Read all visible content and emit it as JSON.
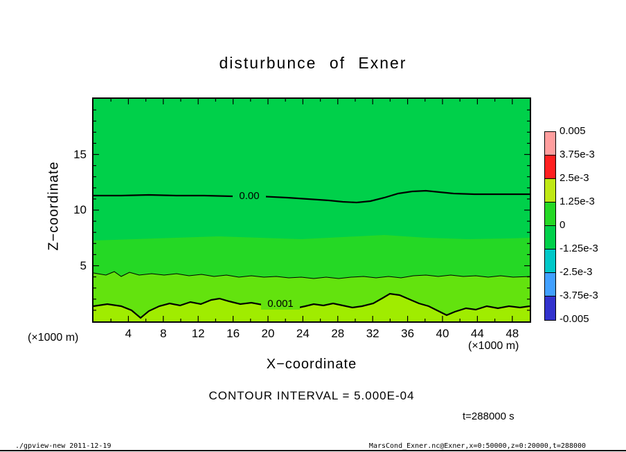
{
  "title": "disturbunce of Exner",
  "plot": {
    "band_colors": [
      "#00d04a",
      "#25d825",
      "#63e30e",
      "#a0ec00"
    ],
    "contour_labels": {
      "zero": "0.00",
      "one": "0.001"
    }
  },
  "axes": {
    "x_label": "X−coordinate",
    "y_label": "Z−coordinate",
    "x_unit_left": "(×1000 m)",
    "x_unit_right": "(×1000 m)",
    "x_ticks": [
      "4",
      "8",
      "12",
      "16",
      "20",
      "24",
      "28",
      "32",
      "36",
      "40",
      "44",
      "48"
    ],
    "y_ticks": [
      "5",
      "10",
      "15"
    ]
  },
  "colorbar": {
    "labels": [
      "0.005",
      "3.75e-3",
      "2.5e-3",
      "1.25e-3",
      "0",
      "-1.25e-3",
      "-2.5e-3",
      "-3.75e-3",
      "-0.005"
    ],
    "colors": [
      "#ff9e9e",
      "#ff2020",
      "#bfe814",
      "#25d825",
      "#00d04a",
      "#00c8c8",
      "#41a0ff",
      "#3232cd"
    ]
  },
  "annotations": {
    "contour_interval": "CONTOUR INTERVAL = 5.000E-04",
    "time": "t=288000 s"
  },
  "footer": {
    "left": "./gpview-new  2011-12-19",
    "right": "MarsCond_Exner.nc@Exner,x=0:50000,z=0:20000,t=288000"
  },
  "chart_data": {
    "type": "heatmap",
    "subtype": "filled-contour",
    "title": "disturbunce of Exner",
    "xlabel": "X-coordinate (x1000 m)",
    "ylabel": "Z-coordinate (x1000 m)",
    "x_range": [
      0,
      50
    ],
    "z_range": [
      0,
      20
    ],
    "contour_interval": 0.0005,
    "time_s": 288000,
    "colorbar_ticks": [
      0.005,
      0.00375,
      0.0025,
      0.00125,
      0,
      -0.00125,
      -0.0025,
      -0.00375,
      -0.005
    ],
    "legend_position": "right",
    "grid": false,
    "contours": [
      {
        "level": 0.0,
        "label": "0.00",
        "line": "thick",
        "x": [
          0,
          5,
          10,
          15,
          20,
          25,
          30,
          35,
          40,
          45,
          50
        ],
        "z": [
          11.3,
          11.3,
          11.3,
          11.2,
          11.2,
          11.0,
          10.7,
          11.0,
          11.7,
          11.4,
          11.4
        ]
      },
      {
        "level": 0.0005,
        "label": null,
        "line": "thin",
        "x": [
          0,
          5,
          10,
          15,
          20,
          25,
          30,
          35,
          40,
          45,
          50
        ],
        "z": [
          4.3,
          4.1,
          4.1,
          4.0,
          3.9,
          3.9,
          3.8,
          3.9,
          4.1,
          4.0,
          4.0
        ]
      },
      {
        "level": 0.001,
        "label": "0.001",
        "line": "thick",
        "x": [
          0,
          5,
          10,
          15,
          20,
          25,
          30,
          35,
          40,
          45,
          50
        ],
        "z": [
          1.4,
          1.2,
          1.7,
          1.6,
          1.5,
          1.3,
          1.4,
          1.5,
          2.4,
          1.0,
          1.4
        ]
      }
    ],
    "fill_description": "mostly uniform green (values near 0) over full domain; progressively yellower green bands below z≈7, z≈4 and below the 0.001 contour near the surface"
  }
}
